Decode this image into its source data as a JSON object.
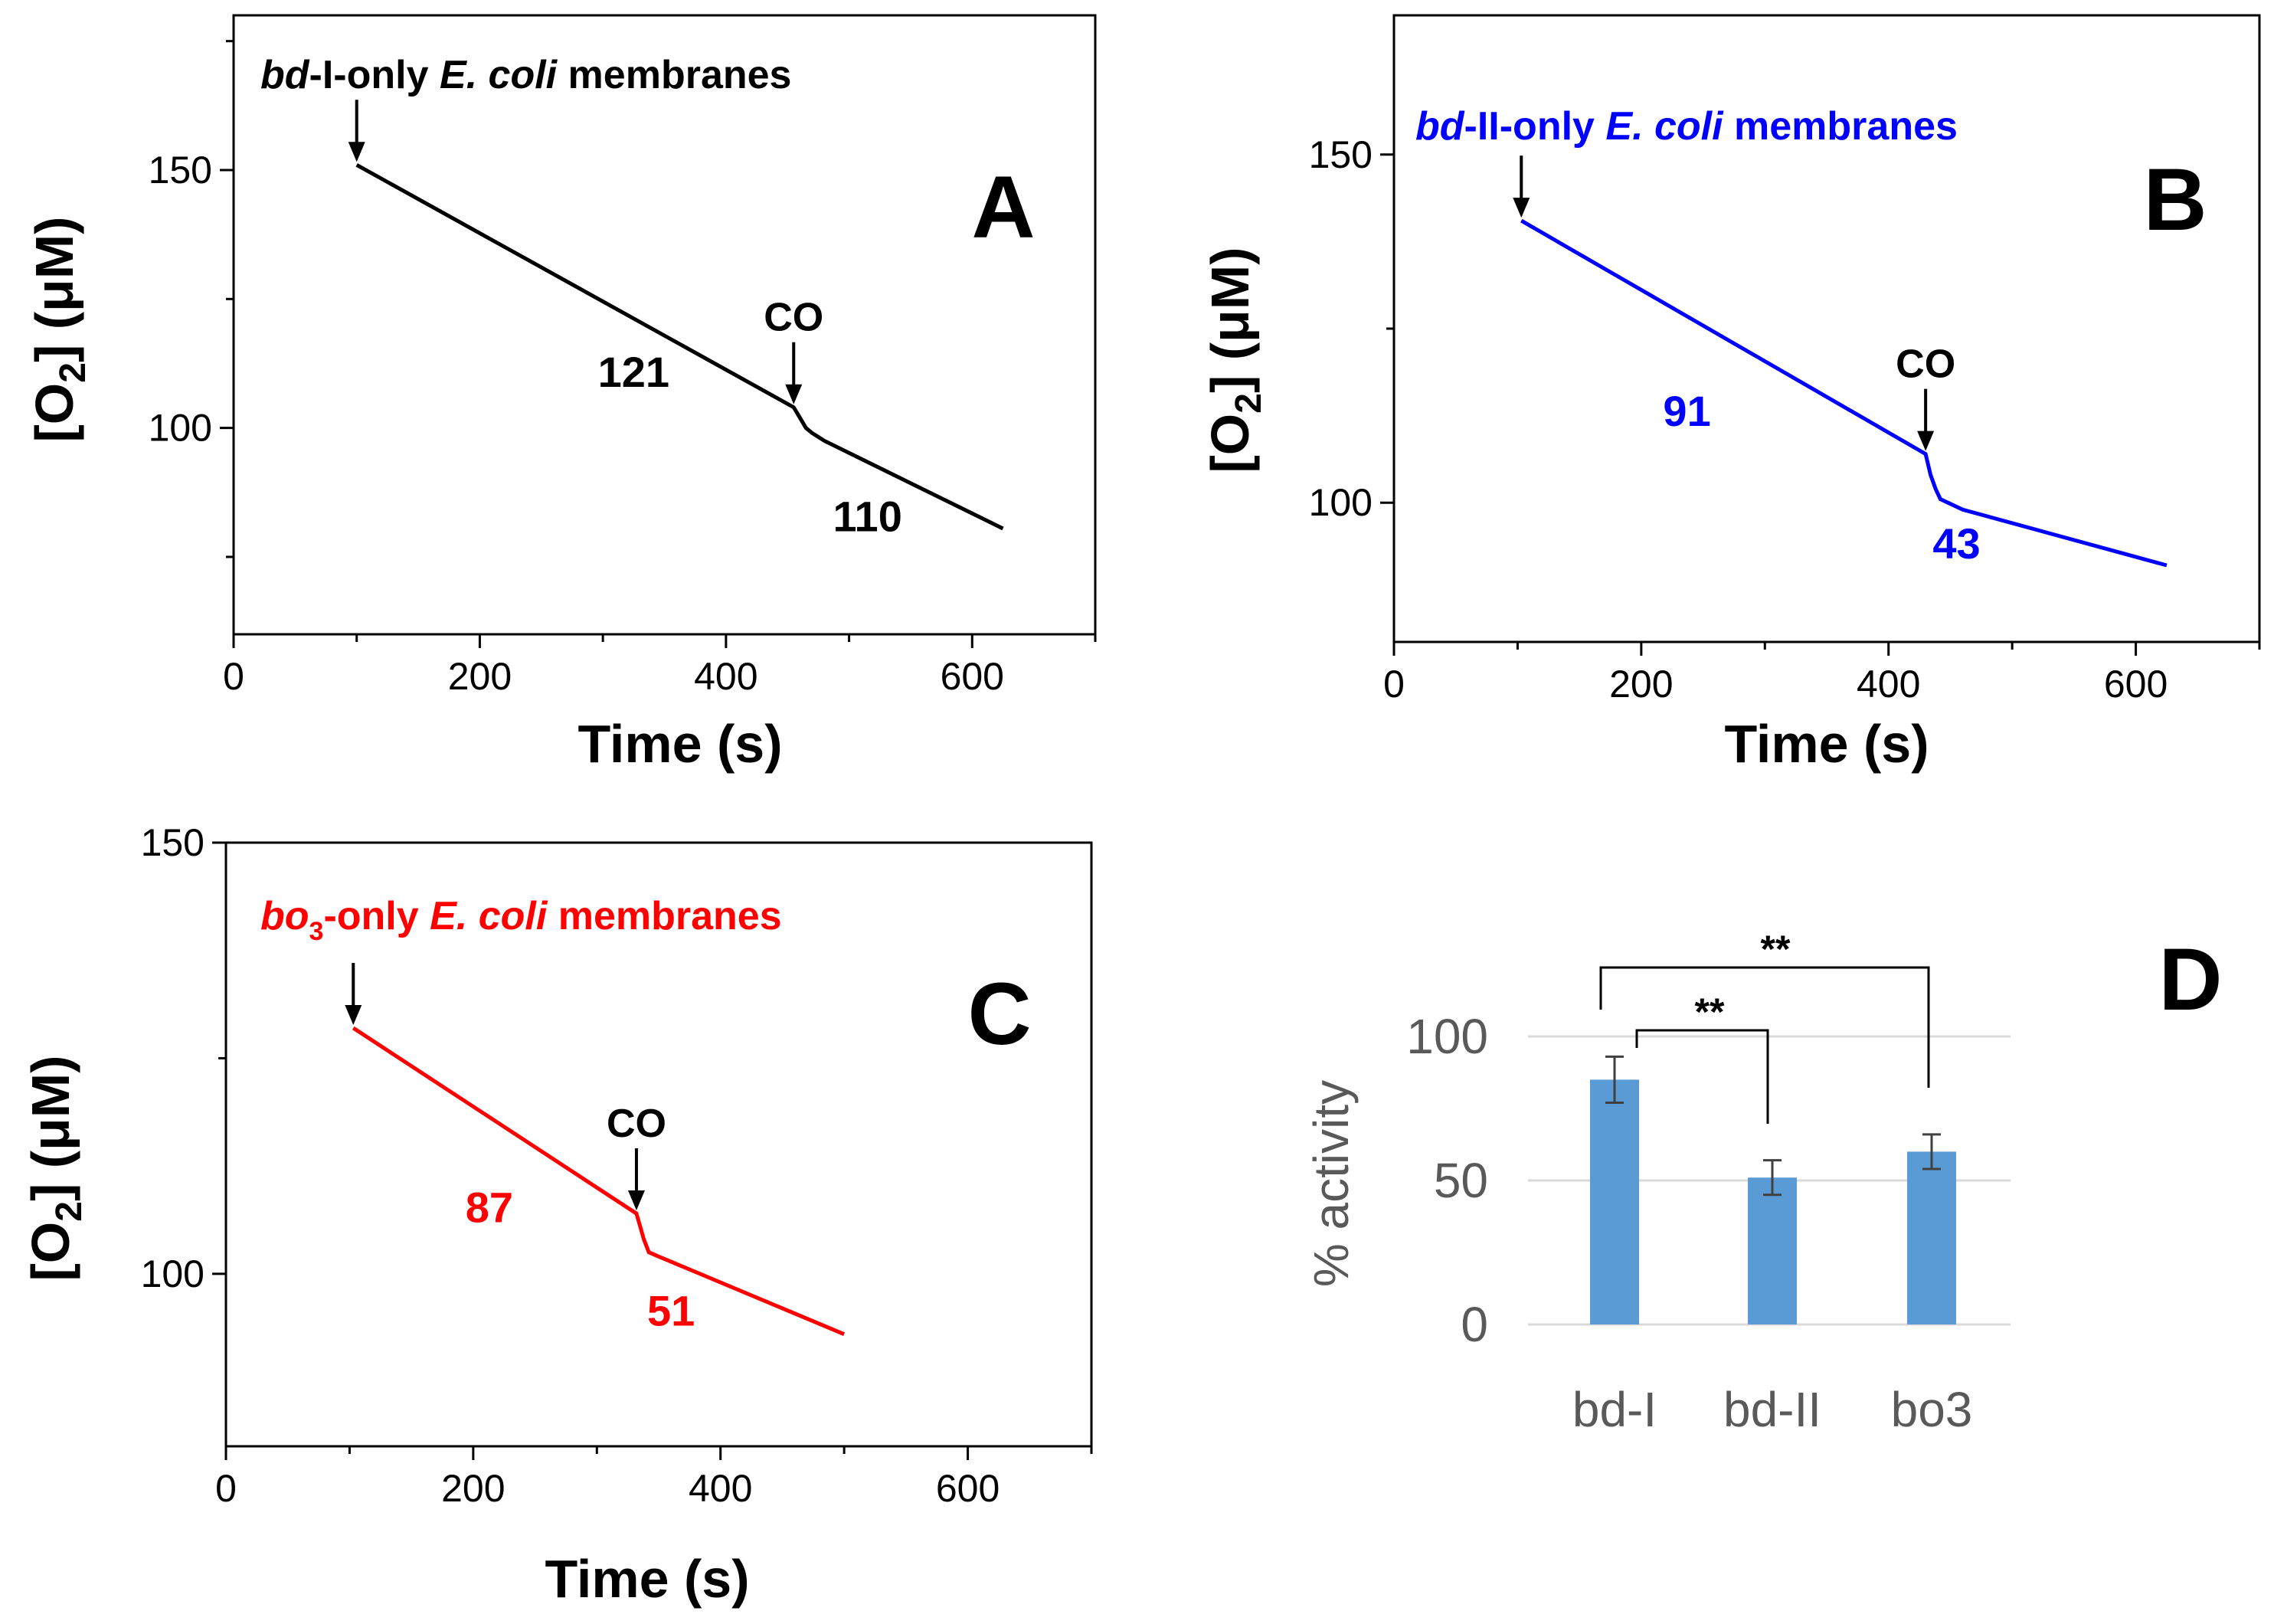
{
  "colors": {
    "panel_a": "#000000",
    "panel_b": "#0000ff",
    "panel_c": "#ff0000",
    "bars": "#5b9bd5",
    "error_bars": "#404040",
    "grid": "#d9d9d9"
  },
  "chart_data": [
    {
      "id": "A",
      "type": "line",
      "panel_letter": "A",
      "annotation": {
        "italic_1": "bd",
        "text_1": "-I-only ",
        "italic_2": "E. coli",
        "text_2": " membranes"
      },
      "xlabel": "Time (s)",
      "ylabel": {
        "prefix": "[O",
        "sub": "2",
        "suffix": "] (μM)"
      },
      "xlim": [
        0,
        700
      ],
      "ylim": [
        60,
        180
      ],
      "xticks": [
        0,
        200,
        400,
        600
      ],
      "yticks": [
        100,
        150
      ],
      "color": "#000000",
      "x": [
        100,
        455,
        460,
        465,
        470,
        480,
        625
      ],
      "y": [
        151,
        104,
        102,
        100,
        99,
        97.5,
        80.5
      ],
      "start_arrow": {
        "x": 100,
        "y": 151
      },
      "co_arrow": {
        "label": "CO",
        "x": 455,
        "y": 104
      },
      "rates": [
        {
          "label": "121",
          "x": 325,
          "y": 108
        },
        {
          "label": "110",
          "x": 515,
          "y": 80
        }
      ]
    },
    {
      "id": "B",
      "type": "line",
      "panel_letter": "B",
      "annotation": {
        "italic_1": "bd",
        "text_1": "-II-only ",
        "italic_2": "E. coli",
        "text_2": " membranes"
      },
      "xlabel": "Time (s)",
      "ylabel": {
        "prefix": "[O",
        "sub": "2",
        "suffix": "] (μM)"
      },
      "xlim": [
        0,
        700
      ],
      "ylim": [
        80,
        170
      ],
      "xticks": [
        0,
        200,
        400,
        600
      ],
      "yticks": [
        100,
        150
      ],
      "color": "#0000ff",
      "x": [
        103,
        430,
        434,
        438,
        442,
        448,
        460,
        625
      ],
      "y": [
        140.5,
        107,
        104,
        102,
        100.5,
        100,
        99,
        91
      ],
      "start_arrow": {
        "x": 103,
        "y": 140.5
      },
      "co_arrow": {
        "label": "CO",
        "x": 430,
        "y": 107
      },
      "rates": [
        {
          "label": "91",
          "x": 237,
          "y": 111
        },
        {
          "label": "43",
          "x": 455,
          "y": 92
        }
      ]
    },
    {
      "id": "C",
      "type": "line",
      "panel_letter": "C",
      "annotation": {
        "italic_1": "bo",
        "sub": "3",
        "text_1": "-only ",
        "italic_2": "E. coli",
        "text_2": " membranes"
      },
      "xlabel": "Time (s)",
      "ylabel": {
        "prefix": "[O",
        "sub": "2",
        "suffix": "] (μM)"
      },
      "xlim": [
        0,
        700
      ],
      "ylim": [
        80,
        150
      ],
      "xticks": [
        0,
        200,
        400,
        600
      ],
      "yticks": [
        100,
        150
      ],
      "color": "#ff0000",
      "x": [
        103,
        332,
        335,
        338,
        342,
        350,
        500
      ],
      "y": [
        128.5,
        107,
        105.5,
        104,
        102.5,
        102,
        93
      ],
      "start_arrow": {
        "x": 103,
        "y": 128.5
      },
      "co_arrow": {
        "label": "CO",
        "x": 332,
        "y": 107
      },
      "rates": [
        {
          "label": "87",
          "x": 213,
          "y": 106
        },
        {
          "label": "51",
          "x": 360,
          "y": 94
        }
      ]
    },
    {
      "id": "D",
      "type": "bar",
      "panel_letter": "D",
      "ylabel": "% activity",
      "categories": [
        "bd-I",
        "bd-II",
        "bo3"
      ],
      "values": [
        85,
        51,
        60
      ],
      "errors": [
        8,
        6,
        6
      ],
      "ylim": [
        0,
        100
      ],
      "yticks": [
        0,
        50,
        100
      ],
      "grid": true,
      "significance": [
        {
          "from": 0,
          "to": 1,
          "label": "**"
        },
        {
          "from": 0,
          "to": 2,
          "label": "**"
        }
      ]
    }
  ]
}
